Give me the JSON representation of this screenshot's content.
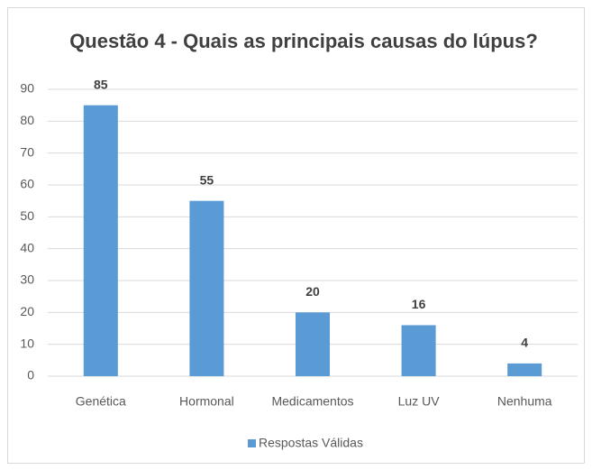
{
  "chart_data": {
    "type": "bar",
    "title": "Questão 4 - Quais as principais causas do lúpus?",
    "categories": [
      "Genética",
      "Hormonal",
      "Medicamentos",
      "Luz UV",
      "Nenhuma"
    ],
    "series": [
      {
        "name": "Respostas Válidas",
        "color": "#5b9bd5",
        "values": [
          85,
          55,
          20,
          16,
          4
        ]
      }
    ],
    "ylim": [
      0,
      90
    ],
    "yticks": [
      0,
      10,
      20,
      30,
      40,
      50,
      60,
      70,
      80,
      90
    ],
    "grid": true,
    "legend": "bottom"
  }
}
